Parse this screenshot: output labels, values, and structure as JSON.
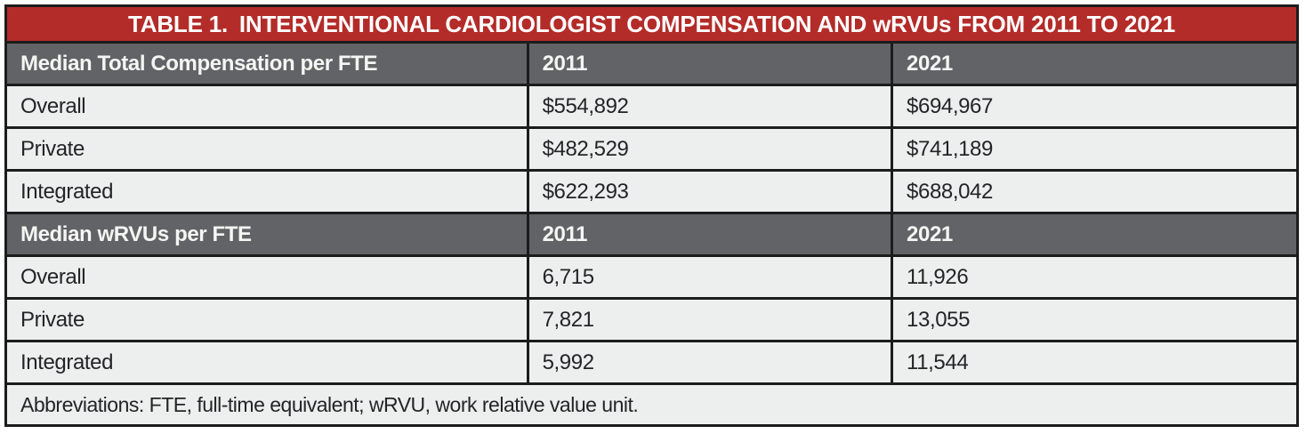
{
  "table": {
    "title": "TABLE 1. INTERVENTIONAL CARDIOLOGIST COMPENSATION AND wRVUs FROM 2011 TO 2021",
    "sections": [
      {
        "header": {
          "label": "Median Total Compensation per FTE",
          "col2011": "2011",
          "col2021": "2021"
        },
        "rows": [
          {
            "label": "Overall",
            "col2011": "$554,892",
            "col2021": "$694,967"
          },
          {
            "label": "Private",
            "col2011": "$482,529",
            "col2021": "$741,189"
          },
          {
            "label": "Integrated",
            "col2011": "$622,293",
            "col2021": "$688,042"
          }
        ]
      },
      {
        "header": {
          "label": "Median wRVUs per FTE",
          "col2011": "2011",
          "col2021": "2021"
        },
        "rows": [
          {
            "label": "Overall",
            "col2011": "6,715",
            "col2021": "11,926"
          },
          {
            "label": "Private",
            "col2011": "7,821",
            "col2021": "13,055"
          },
          {
            "label": "Integrated",
            "col2011": "5,992",
            "col2021": "11,544"
          }
        ]
      }
    ],
    "footnote": "Abbreviations: FTE, full-time equivalent; wRVU, work relative value unit.",
    "colors": {
      "title_bg": "#b32c29",
      "section_bg": "#626366",
      "row_bg": "#edefee",
      "border": "#1c1c1c",
      "header_text": "#ffffff",
      "body_text": "#222527"
    }
  },
  "chart_data": {
    "type": "table",
    "title": "TABLE 1. INTERVENTIONAL CARDIOLOGIST COMPENSATION AND wRVUs FROM 2011 TO 2021",
    "columns": [
      "",
      "2011",
      "2021"
    ],
    "sections": [
      {
        "name": "Median Total Compensation per FTE",
        "rows": [
          [
            "Overall",
            "$554,892",
            "$694,967"
          ],
          [
            "Private",
            "$482,529",
            "$741,189"
          ],
          [
            "Integrated",
            "$622,293",
            "$688,042"
          ]
        ],
        "values_2011": [
          554892,
          482529,
          622293
        ],
        "values_2021": [
          694967,
          741189,
          688042
        ]
      },
      {
        "name": "Median wRVUs per FTE",
        "rows": [
          [
            "Overall",
            "6,715",
            "11,926"
          ],
          [
            "Private",
            "7,821",
            "13,055"
          ],
          [
            "Integrated",
            "5,992",
            "11,544"
          ]
        ],
        "values_2011": [
          6715,
          7821,
          5992
        ],
        "values_2021": [
          11926,
          13055,
          11544
        ]
      }
    ],
    "footnote": "Abbreviations: FTE, full-time equivalent; wRVU, work relative value unit."
  }
}
